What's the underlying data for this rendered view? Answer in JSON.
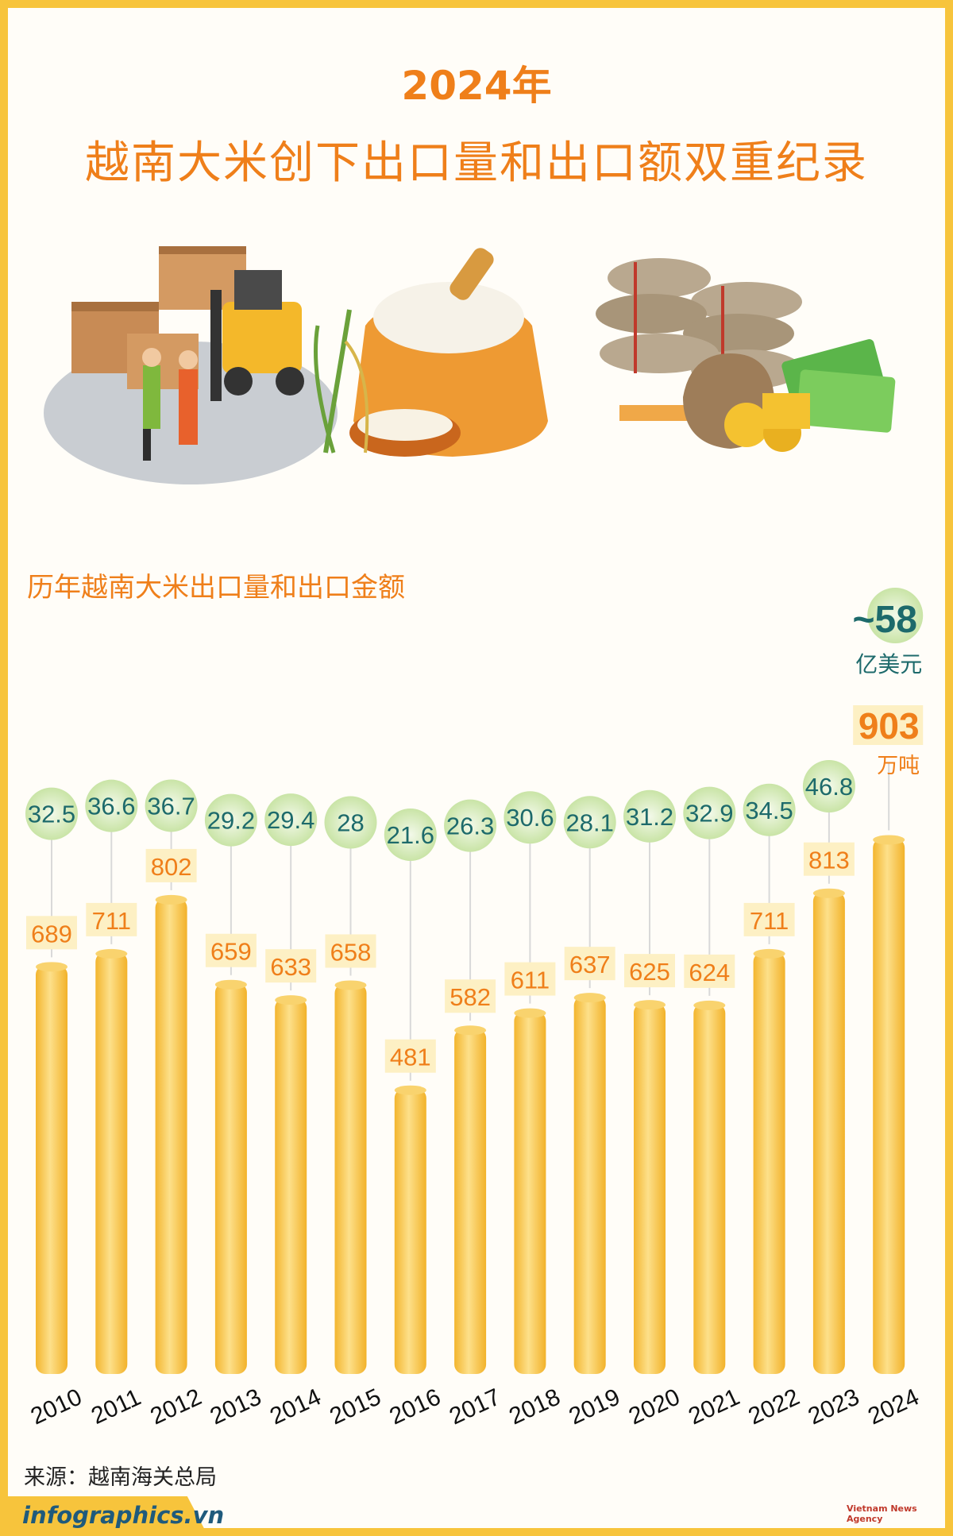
{
  "header": {
    "year": "2024年",
    "title": "越南大米创下出口量和出口额双重纪录"
  },
  "colors": {
    "accent": "#ef7f1a",
    "teal": "#1d6a6b",
    "bar": "#f7c03b",
    "bubble": "#d7edb9",
    "frame": "#f7c43c"
  },
  "chart_data": {
    "type": "bar",
    "title": "历年越南大米出口量和出口金额",
    "categories": [
      "2010",
      "2011",
      "2012",
      "2013",
      "2014",
      "2015",
      "2016",
      "2017",
      "2018",
      "2019",
      "2020",
      "2021",
      "2022",
      "2023",
      "2024"
    ],
    "series": [
      {
        "values": [
          689,
          711,
          802,
          659,
          633,
          658,
          481,
          582,
          611,
          637,
          625,
          624,
          711,
          813,
          903
        ]
      },
      {
        "values": [
          32.5,
          36.6,
          36.7,
          29.2,
          29.4,
          28,
          21.6,
          26.3,
          30.6,
          28.1,
          31.2,
          32.9,
          34.5,
          46.8,
          58
        ]
      }
    ],
    "value_labels": [
      "689",
      "711",
      "802",
      "659",
      "633",
      "658",
      "481",
      "582",
      "611",
      "637",
      "625",
      "624",
      "711",
      "813",
      ""
    ],
    "bubble_labels": [
      "32.5",
      "36.6",
      "36.7",
      "29.2",
      "29.4",
      "28",
      "21.6",
      "26.3",
      "30.6",
      "28.1",
      "31.2",
      "32.9",
      "34.5",
      "46.8",
      ""
    ],
    "highlight": {
      "value_2024": "~58",
      "value_2024_unit": "亿美元",
      "volume_2024": "903",
      "volume_2024_unit": "万吨"
    }
  },
  "footer": {
    "source": "来源：越南海关总局",
    "brand": "infographics.vn",
    "agency": "Vietnam News Agency"
  }
}
